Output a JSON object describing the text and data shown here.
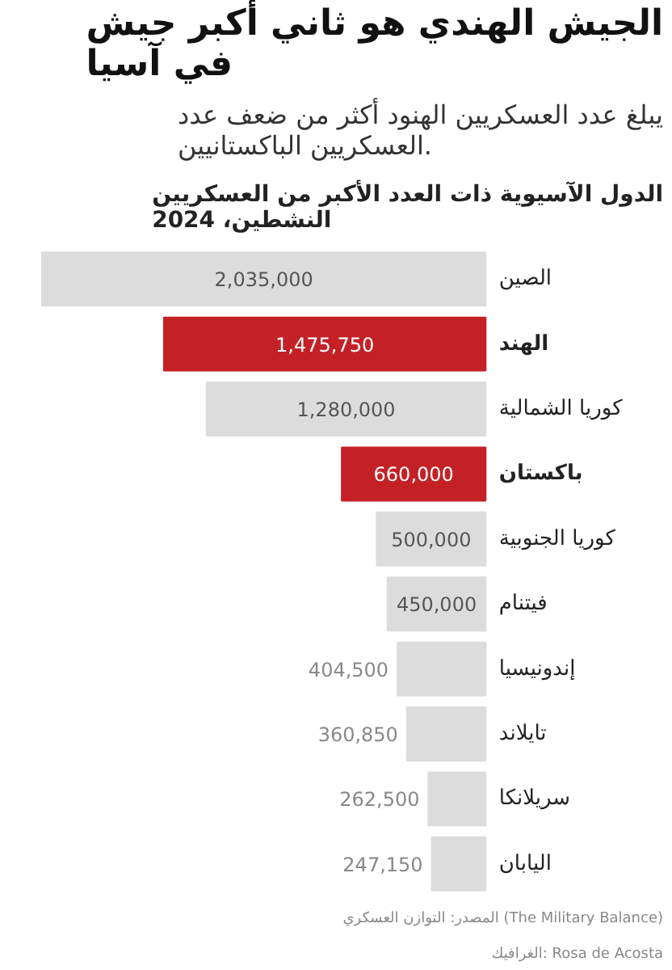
{
  "chart_data": {
    "type": "bar",
    "orientation": "horizontal",
    "title": "الجيش الهندي هو ثاني أكبر جيش في آسيا",
    "subtitle": "يبلغ عدد العسكريين الهنود أكثر من ضعف عدد العسكريين الباكستانيين.",
    "annotations": [
      "الدول الآسيوية ذات العدد الأكبر من العسكريين النشطين، 2024",
      "المصدر: التوازن العسكري (The Military Balance)",
      "الغرافيك: Rosa de Acosta"
    ],
    "categories": [
      "الصين",
      "الهند",
      "كوريا الشمالية",
      "باكستان",
      "كوريا الجنوبية",
      "فيتنام",
      "إندونيسيا",
      "تايلاند",
      "سريلانكا",
      "اليابان"
    ],
    "values": [
      2035000,
      1475750,
      1280000,
      660000,
      500000,
      450000,
      404500,
      360850,
      262500,
      247150
    ],
    "value_labels": [
      "2,035,000",
      "1,475,750",
      "1,280,000",
      "660,000",
      "500,000",
      "450,000",
      "404,500",
      "360,850",
      "262,500",
      "247,150"
    ],
    "colors": [
      "#dcdcdc",
      "#c42126",
      "#dcdcdc",
      "#c42126",
      "#dcdcdc",
      "#dcdcdc",
      "#dcdcdc",
      "#dcdcdc",
      "#dcdcdc",
      "#dcdcdc"
    ],
    "grid": false
  }
}
